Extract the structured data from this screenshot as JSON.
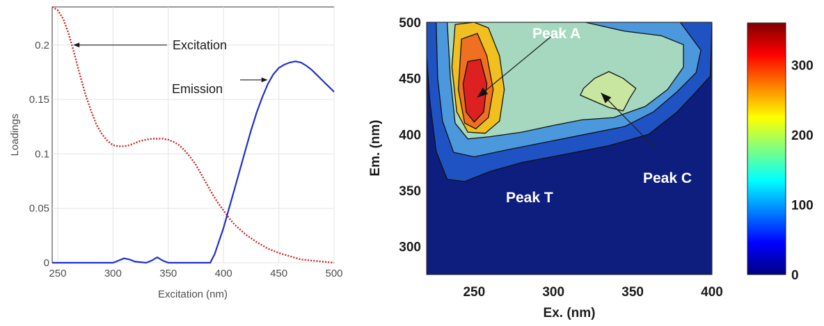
{
  "chart_data": [
    {
      "type": "line",
      "title": "",
      "xlabel": "Excitation (nm)",
      "ylabel": "Loadings",
      "xlim": [
        245,
        500
      ],
      "ylim": [
        0,
        0.235
      ],
      "xticks": [
        250,
        300,
        350,
        400,
        450,
        500
      ],
      "yticks": [
        0,
        0.05,
        0.1,
        0.15,
        0.2
      ],
      "xtick_labels": [
        "250",
        "300",
        "350",
        "400",
        "450",
        "500"
      ],
      "ytick_labels": [
        "0",
        "0.05",
        "0.1",
        "0.15",
        "0.2"
      ],
      "grid": true,
      "series": [
        {
          "name": "Excitation",
          "color": "#cc2222",
          "style": "dotted",
          "x": [
            245,
            250,
            255,
            260,
            265,
            270,
            275,
            280,
            285,
            290,
            295,
            300,
            305,
            310,
            315,
            320,
            325,
            330,
            335,
            340,
            345,
            350,
            355,
            360,
            365,
            370,
            375,
            380,
            385,
            390,
            395,
            400,
            405,
            410,
            420,
            430,
            440,
            450,
            460,
            470,
            480,
            490,
            500
          ],
          "y": [
            0.235,
            0.232,
            0.224,
            0.21,
            0.192,
            0.173,
            0.155,
            0.14,
            0.127,
            0.118,
            0.112,
            0.108,
            0.107,
            0.107,
            0.108,
            0.11,
            0.112,
            0.113,
            0.114,
            0.114,
            0.114,
            0.113,
            0.111,
            0.108,
            0.103,
            0.097,
            0.09,
            0.081,
            0.072,
            0.063,
            0.055,
            0.048,
            0.041,
            0.035,
            0.026,
            0.019,
            0.013,
            0.009,
            0.006,
            0.003,
            0.002,
            0.001,
            0
          ]
        },
        {
          "name": "Emission",
          "color": "#1f2fcc",
          "style": "solid",
          "x": [
            245,
            300,
            305,
            310,
            315,
            320,
            330,
            335,
            340,
            345,
            350,
            360,
            380,
            388,
            392,
            396,
            400,
            405,
            410,
            415,
            420,
            425,
            430,
            435,
            440,
            445,
            450,
            455,
            460,
            465,
            470,
            475,
            480,
            485,
            490,
            495,
            500
          ],
          "y": [
            0,
            0,
            0.002,
            0.004,
            0.003,
            0.001,
            0,
            0.002,
            0.005,
            0.002,
            0,
            0,
            0,
            0,
            0.008,
            0.02,
            0.032,
            0.05,
            0.068,
            0.086,
            0.104,
            0.122,
            0.138,
            0.152,
            0.164,
            0.173,
            0.179,
            0.182,
            0.184,
            0.185,
            0.184,
            0.181,
            0.177,
            0.172,
            0.167,
            0.162,
            0.157
          ]
        }
      ],
      "annotations": [
        {
          "text": "Excitation",
          "points_to": [
            264,
            0.2
          ]
        },
        {
          "text": "Emission",
          "points_to": [
            440,
            0.168
          ]
        }
      ]
    },
    {
      "type": "heatmap",
      "title": "",
      "xlabel": "Ex. (nm)",
      "ylabel": "Em. (nm)",
      "xlim": [
        220,
        400
      ],
      "ylim": [
        275,
        500
      ],
      "xticks": [
        250,
        300,
        350,
        400
      ],
      "yticks": [
        300,
        350,
        400,
        450,
        500
      ],
      "xtick_labels": [
        "250",
        "300",
        "350",
        "400"
      ],
      "ytick_labels": [
        "300",
        "350",
        "400",
        "450",
        "500"
      ],
      "colorbar": {
        "range": [
          0,
          360
        ],
        "ticks": [
          0,
          100,
          200,
          300
        ],
        "tick_labels": [
          "0",
          "100",
          "200",
          "300"
        ],
        "colors": [
          "#000080",
          "#0000ff",
          "#0080ff",
          "#00ffff",
          "#80ff80",
          "#ffff00",
          "#ff8000",
          "#ff0000",
          "#800000"
        ]
      },
      "contours": [
        {
          "level": 20,
          "color": "#1f53c4",
          "points": [
            [
              220,
              500
            ],
            [
              400,
              500
            ],
            [
              399,
              452
            ],
            [
              388,
              435
            ],
            [
              378,
              420
            ],
            [
              360,
              400
            ],
            [
              335,
              390
            ],
            [
              310,
              383
            ],
            [
              280,
              375
            ],
            [
              260,
              367
            ],
            [
              244,
              358
            ],
            [
              233,
              360
            ],
            [
              226,
              385
            ],
            [
              222,
              430
            ],
            [
              220,
              470
            ]
          ]
        },
        {
          "level": 60,
          "color": "#4b98dc",
          "points": [
            [
              226,
              500
            ],
            [
              380,
              500
            ],
            [
              393,
              475
            ],
            [
              390,
              455
            ],
            [
              378,
              438
            ],
            [
              363,
              420
            ],
            [
              345,
              407
            ],
            [
              320,
              400
            ],
            [
              295,
              393
            ],
            [
              270,
              386
            ],
            [
              250,
              380
            ],
            [
              237,
              384
            ],
            [
              230,
              412
            ],
            [
              227,
              450
            ]
          ]
        },
        {
          "level": 120,
          "color": "#a6d8c0",
          "points": [
            [
              233,
              500
            ],
            [
              320,
              500
            ],
            [
              345,
              492
            ],
            [
              368,
              488
            ],
            [
              382,
              480
            ],
            [
              382,
              460
            ],
            [
              372,
              440
            ],
            [
              358,
              425
            ],
            [
              338,
              415
            ],
            [
              318,
              413
            ],
            [
              300,
              408
            ],
            [
              280,
              402
            ],
            [
              260,
              398
            ],
            [
              246,
              396
            ],
            [
              238,
              410
            ],
            [
              235,
              450
            ]
          ]
        },
        {
          "level": 170,
          "color": "#c8e6a0",
          "points": [
            [
              319,
              441
            ],
            [
              326,
              450
            ],
            [
              335,
              456
            ],
            [
              344,
              450
            ],
            [
              352,
              441
            ],
            [
              348,
              432
            ],
            [
              344,
              421
            ],
            [
              335,
              424
            ],
            [
              325,
              430
            ],
            [
              317,
              435
            ]
          ]
        },
        {
          "level": 220,
          "color": "#f0c020",
          "points": [
            [
              238,
              498
            ],
            [
              250,
              500
            ],
            [
              259,
              495
            ],
            [
              266,
              470
            ],
            [
              269,
              440
            ],
            [
              266,
              412
            ],
            [
              257,
              401
            ],
            [
              246,
              402
            ],
            [
              239,
              420
            ],
            [
              236,
              460
            ]
          ]
        },
        {
          "level": 280,
          "color": "#ee7020",
          "points": [
            [
              242,
              485
            ],
            [
              252,
              490
            ],
            [
              258,
              470
            ],
            [
              262,
              440
            ],
            [
              259,
              415
            ],
            [
              251,
              405
            ],
            [
              244,
              410
            ],
            [
              240,
              440
            ]
          ]
        },
        {
          "level": 330,
          "color": "#dd2020",
          "points": [
            [
              246,
              465
            ],
            [
              254,
              467
            ],
            [
              258,
              445
            ],
            [
              256,
              420
            ],
            [
              250,
              411
            ],
            [
              245,
              420
            ],
            [
              243,
              445
            ]
          ]
        }
      ],
      "annotations": [
        {
          "text": "Peak A",
          "label_at": [
            308,
            493
          ],
          "points_to": [
            252,
            433
          ]
        },
        {
          "text": "Peak C",
          "label_at": [
            364,
            388
          ],
          "points_to": [
            330,
            437
          ]
        },
        {
          "text": "Peak T",
          "label_at": [
            270,
            354
          ]
        }
      ]
    }
  ]
}
